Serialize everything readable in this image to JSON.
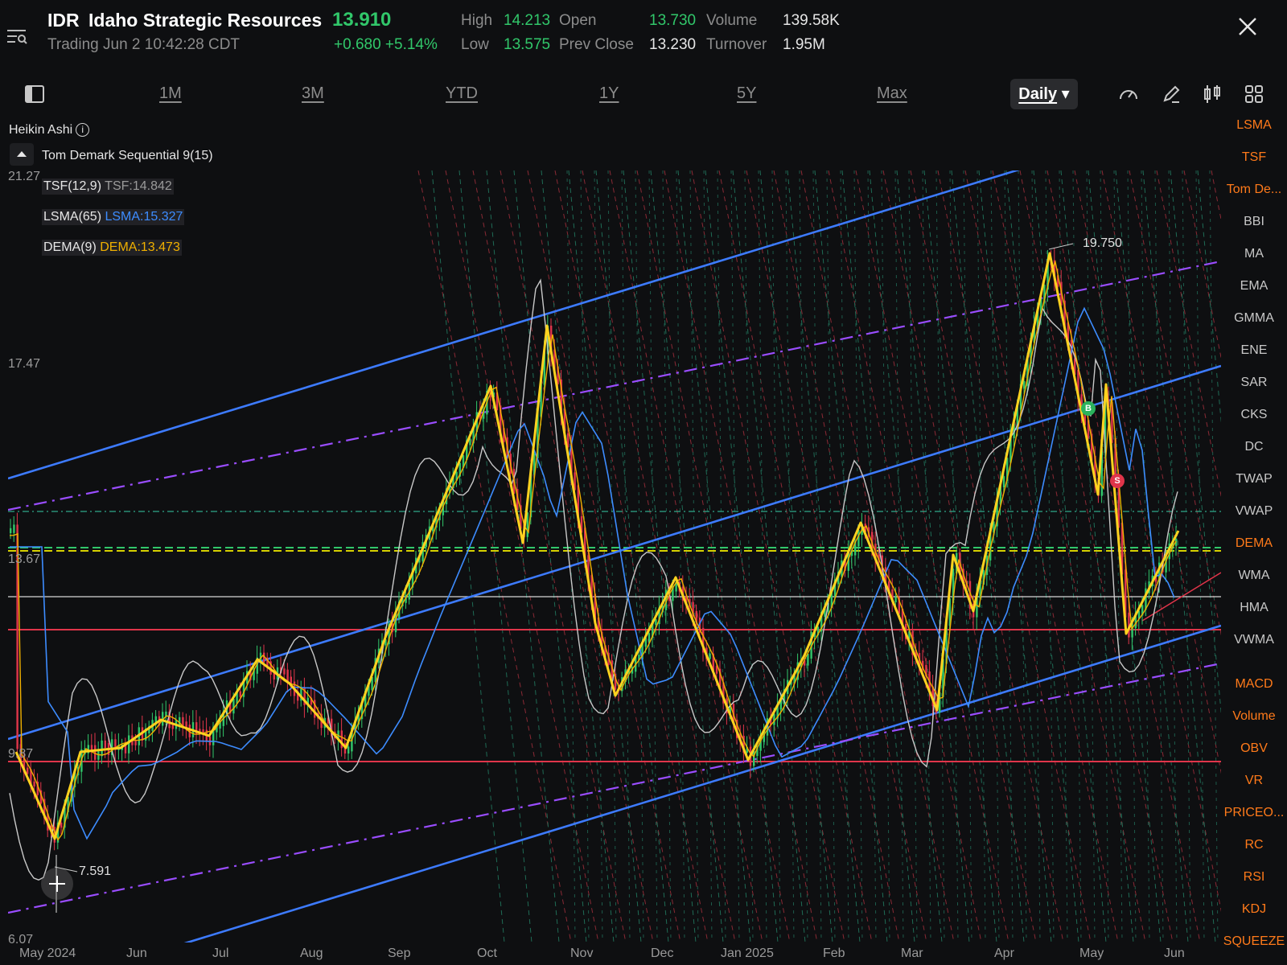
{
  "header": {
    "symbol": "IDR",
    "name": "Idaho Strategic Resources",
    "price": "13.910",
    "status": "Trading Jun 2 10:42:28 CDT",
    "change": "+0.680 +5.14%",
    "stats": {
      "high_label": "High",
      "high": "14.213",
      "low_label": "Low",
      "low": "13.575",
      "open_label": "Open",
      "open": "13.730",
      "prev_close_label": "Prev Close",
      "prev_close": "13.230",
      "volume_label": "Volume",
      "volume": "139.58K",
      "turnover_label": "Turnover",
      "turnover": "1.95M"
    }
  },
  "toolbar": {
    "periods": [
      "1M",
      "3M",
      "YTD",
      "1Y",
      "5Y",
      "Max"
    ],
    "interval": "Daily",
    "icons": [
      "layout-toggle-icon",
      "speedometer-icon",
      "pencil-icon",
      "compare-icon",
      "grid-icon"
    ]
  },
  "legend": {
    "chart_type": "Heikin Ashi",
    "sequential": "Tom Demark Sequential 9(15)",
    "indicators": [
      {
        "name": "TSF(12,9)",
        "value": "TSF:14.842",
        "color": "#9a9a9a"
      },
      {
        "name": "LSMA(65)",
        "value": "LSMA:15.327",
        "color": "#3d8cff"
      },
      {
        "name": "DEMA(9)",
        "value": "DEMA:13.473",
        "color": "#f0b000"
      }
    ]
  },
  "chart": {
    "y_ticks": [
      "21.27",
      "17.47",
      "13.67",
      "9.87",
      "6.07"
    ],
    "x_ticks": [
      "May 2024",
      "Jun",
      "Jul",
      "Aug",
      "Sep",
      "Oct",
      "Nov",
      "Dec",
      "Jan 2025",
      "Feb",
      "Mar",
      "Apr",
      "May",
      "Jun"
    ],
    "high_label": "19.750",
    "low_label": "7.591",
    "signals": {
      "buy": "B",
      "sell": "S"
    },
    "colors": {
      "up": "#31c76a",
      "down": "#e0354a",
      "zigzag": "#ffd21f",
      "channel": "#3d7bff",
      "midline": "#9a4dff",
      "support": "#e0354a"
    }
  },
  "indicator_menu": {
    "overlays": [
      "LSMA",
      "TSF",
      "Tom De...",
      "BBI",
      "MA",
      "EMA",
      "GMMA",
      "ENE",
      "SAR",
      "CKS",
      "DC",
      "TWAP",
      "VWAP",
      "DEMA",
      "WMA",
      "HMA",
      "VWMA"
    ],
    "active_overlays": [
      "LSMA",
      "TSF",
      "Tom De...",
      "DEMA"
    ],
    "subcharts": [
      "MACD",
      "Volume",
      "OBV",
      "VR",
      "PRICEO...",
      "RC",
      "RSI",
      "KDJ",
      "SQUEEZE"
    ]
  }
}
